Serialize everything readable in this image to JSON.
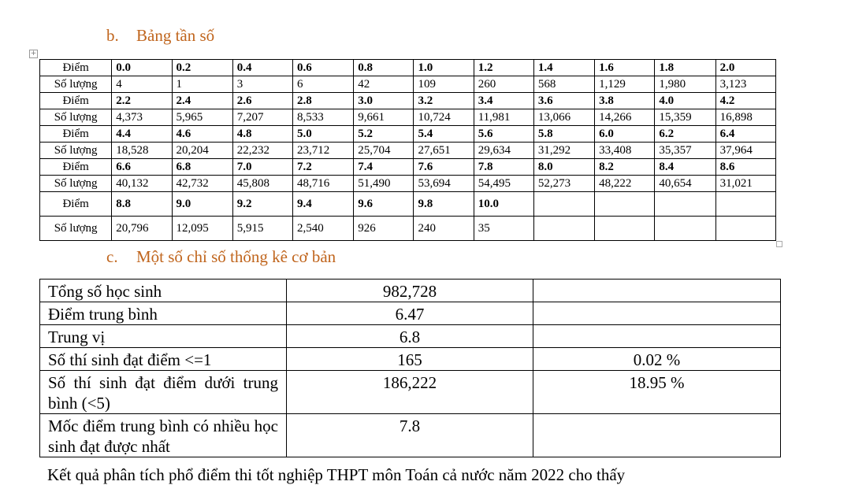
{
  "section_b": {
    "number": "b.",
    "title": "Bảng tần số"
  },
  "freq_table": {
    "rows": [
      {
        "label": "Điểm",
        "kind": "score",
        "cells": [
          "0.0",
          "0.2",
          "0.4",
          "0.6",
          "0.8",
          "1.0",
          "1.2",
          "1.4",
          "1.6",
          "1.8",
          "2.0"
        ]
      },
      {
        "label": "Số lượng",
        "kind": "count",
        "cells": [
          "4",
          "1",
          "3",
          "6",
          "42",
          "109",
          "260",
          "568",
          "1,129",
          "1,980",
          "3,123"
        ]
      },
      {
        "label": "Điểm",
        "kind": "score",
        "cells": [
          "2.2",
          "2.4",
          "2.6",
          "2.8",
          "3.0",
          "3.2",
          "3.4",
          "3.6",
          "3.8",
          "4.0",
          "4.2"
        ]
      },
      {
        "label": "Số lượng",
        "kind": "count",
        "cells": [
          "4,373",
          "5,965",
          "7,207",
          "8,533",
          "9,661",
          "10,724",
          "11,981",
          "13,066",
          "14,266",
          "15,359",
          "16,898"
        ]
      },
      {
        "label": "Điểm",
        "kind": "score",
        "cells": [
          "4.4",
          "4.6",
          "4.8",
          "5.0",
          "5.2",
          "5.4",
          "5.6",
          "5.8",
          "6.0",
          "6.2",
          "6.4"
        ]
      },
      {
        "label": "Số lượng",
        "kind": "count",
        "cells": [
          "18,528",
          "20,204",
          "22,232",
          "23,712",
          "25,704",
          "27,651",
          "29,634",
          "31,292",
          "33,408",
          "35,357",
          "37,964"
        ]
      },
      {
        "label": "Điểm",
        "kind": "score",
        "cells": [
          "6.6",
          "6.8",
          "7.0",
          "7.2",
          "7.4",
          "7.6",
          "7.8",
          "8.0",
          "8.2",
          "8.4",
          "8.6"
        ]
      },
      {
        "label": "Số lượng",
        "kind": "count",
        "cells": [
          "40,132",
          "42,732",
          "45,808",
          "48,716",
          "51,490",
          "53,694",
          "54,495",
          "52,273",
          "48,222",
          "40,654",
          "31,021"
        ]
      },
      {
        "label": "Điểm",
        "kind": "score",
        "cells": [
          "8.8",
          "9.0",
          "9.2",
          "9.4",
          "9.6",
          "9.8",
          "10.0",
          "",
          "",
          "",
          ""
        ]
      },
      {
        "label": "Số lượng",
        "kind": "count",
        "cells": [
          "20,796",
          "12,095",
          "5,915",
          "2,540",
          "926",
          "240",
          "35",
          "",
          "",
          "",
          ""
        ]
      }
    ]
  },
  "section_c": {
    "number": "c.",
    "title": "Một số chỉ số thống kê cơ bản"
  },
  "stats_table": {
    "rows": [
      {
        "label": "Tổng số học sinh",
        "value": "982,728",
        "percent": ""
      },
      {
        "label": "Điểm trung bình",
        "value": "6.47",
        "percent": ""
      },
      {
        "label": "Trung vị",
        "value": "6.8",
        "percent": ""
      },
      {
        "label": "Số thí sinh đạt điểm <=1",
        "value": "165",
        "percent": "0.02 %"
      },
      {
        "label": "Số thí sinh đạt điểm dưới trung bình (<5)",
        "value": "186,222",
        "percent": "18.95 %"
      },
      {
        "label": "Mốc điểm trung bình có nhiều học sinh đạt được nhất",
        "value": "7.8",
        "percent": ""
      }
    ]
  },
  "footer_partial": "Kết quả phân tích phổ điểm thi tốt nghiệp THPT môn Toán cả nước năm 2022 cho thấy"
}
